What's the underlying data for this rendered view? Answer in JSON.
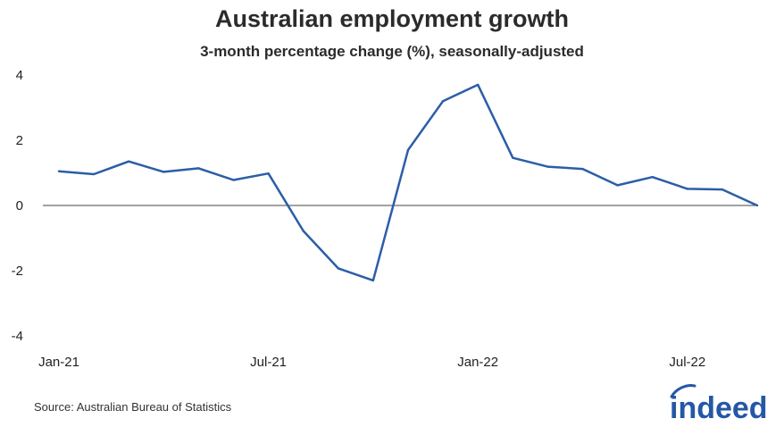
{
  "title": "Australian employment growth",
  "subtitle": "3-month percentage change (%), seasonally-adjusted",
  "source": "Source: Australian Bureau of Statistics",
  "logo_text": "indeed",
  "colors": {
    "line": "#2b5ea7",
    "zero_line": "#444444",
    "brand": "#2557a7"
  },
  "chart_data": {
    "type": "line",
    "title": "Australian employment growth",
    "subtitle": "3-month percentage change (%), seasonally-adjusted",
    "xlabel": "",
    "ylabel": "",
    "ylim": [
      -4,
      4
    ],
    "yticks": [
      4,
      2,
      0,
      -2,
      -4
    ],
    "x": [
      "Jan-21",
      "Feb-21",
      "Mar-21",
      "Apr-21",
      "May-21",
      "Jun-21",
      "Jul-21",
      "Aug-21",
      "Sep-21",
      "Oct-21",
      "Nov-21",
      "Dec-21",
      "Jan-22",
      "Feb-22",
      "Mar-22",
      "Apr-22",
      "May-22",
      "Jun-22",
      "Jul-22",
      "Aug-22",
      "Sep-22"
    ],
    "xtick_labels": [
      "Jan-21",
      "Jul-21",
      "Jan-22",
      "Jul-22"
    ],
    "series": [
      {
        "values": [
          1.05,
          0.96,
          1.35,
          1.03,
          1.14,
          0.78,
          0.98,
          -0.78,
          -1.93,
          -2.3,
          1.7,
          3.2,
          3.7,
          1.46,
          1.19,
          1.12,
          0.62,
          0.87,
          0.51,
          0.49,
          0.0
        ]
      }
    ],
    "grid": false,
    "zero_line": true,
    "legend": "none"
  }
}
